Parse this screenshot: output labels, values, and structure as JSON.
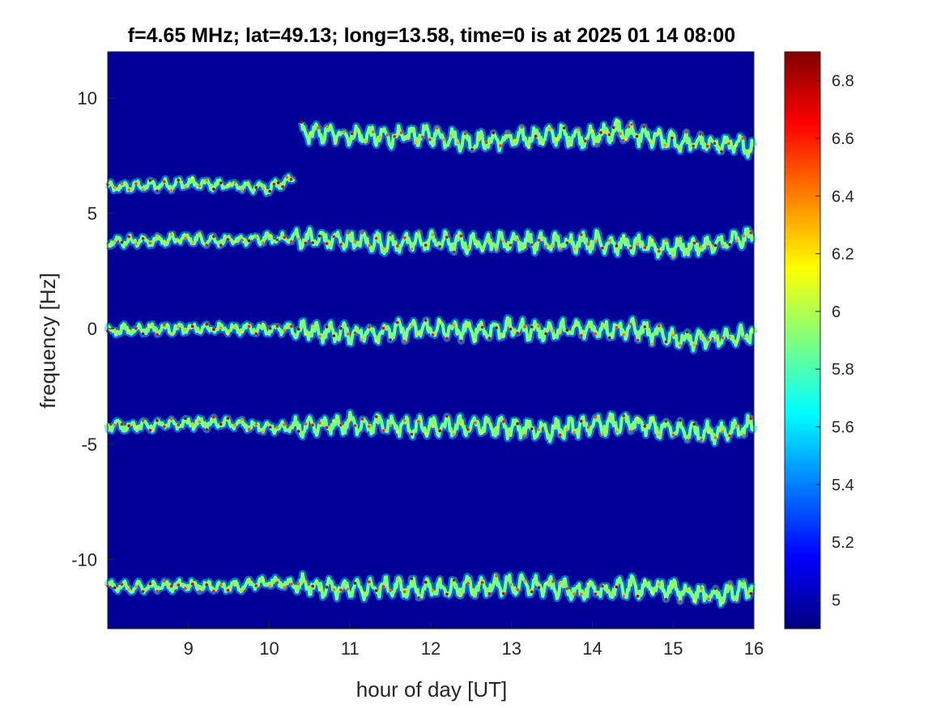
{
  "chart_data": {
    "type": "heatmap",
    "title": "f=4.65 MHz;  lat=49.13; long=13.58, time=0 is at 2025 01 14 08:00",
    "xlabel": "hour of day [UT]",
    "ylabel": "frequency [Hz]",
    "xlim": [
      8,
      16
    ],
    "ylim": [
      -13,
      12
    ],
    "xticks": [
      9,
      10,
      11,
      12,
      13,
      14,
      15,
      16
    ],
    "yticks": [
      -10,
      -5,
      0,
      5,
      10
    ],
    "colormap": "jet",
    "colorbar": {
      "range": [
        4.9,
        6.9
      ],
      "ticks": [
        5,
        5.2,
        5.4,
        5.6,
        5.8,
        6,
        6.2,
        6.4,
        6.6,
        6.8
      ],
      "placement": "right"
    },
    "background_value": 4.95,
    "traces": [
      {
        "segments": [
          {
            "x": [
              8.0,
              8.5,
              9.0,
              9.5,
              10.0,
              10.3
            ],
            "y": [
              6.1,
              6.2,
              6.3,
              6.2,
              6.1,
              6.5
            ]
          },
          {
            "x": [
              10.4,
              11.0,
              11.5,
              12.0,
              12.5,
              13.0,
              13.5,
              14.0,
              14.3,
              14.5,
              15.0,
              15.5,
              16.0
            ],
            "y": [
              8.5,
              8.4,
              8.3,
              8.4,
              8.1,
              8.2,
              8.4,
              8.3,
              8.6,
              8.4,
              8.1,
              8.0,
              7.9
            ]
          }
        ]
      },
      {
        "segments": [
          {
            "x": [
              8.0,
              8.5,
              9.0,
              9.5,
              10.0,
              10.5,
              11.0,
              11.5,
              12.0,
              12.5,
              13.0,
              13.5,
              14.0,
              14.5,
              15.0,
              15.5,
              16.0
            ],
            "y": [
              3.8,
              3.8,
              3.9,
              3.8,
              3.9,
              3.9,
              3.8,
              3.7,
              3.8,
              3.7,
              3.8,
              3.7,
              3.8,
              3.6,
              3.5,
              3.6,
              4.0
            ]
          }
        ]
      },
      {
        "segments": [
          {
            "x": [
              8.0,
              8.5,
              9.0,
              9.5,
              10.0,
              10.5,
              11.0,
              11.5,
              12.0,
              12.5,
              13.0,
              13.5,
              14.0,
              14.5,
              15.0,
              15.5,
              16.0
            ],
            "y": [
              -0.1,
              0.0,
              0.0,
              0.0,
              0.0,
              -0.1,
              -0.2,
              -0.1,
              0.0,
              -0.1,
              0.0,
              -0.1,
              0.0,
              0.0,
              -0.4,
              -0.5,
              -0.2
            ]
          }
        ]
      },
      {
        "segments": [
          {
            "x": [
              8.0,
              8.5,
              9.0,
              9.5,
              10.0,
              10.5,
              11.0,
              11.5,
              12.0,
              12.5,
              13.0,
              13.5,
              14.0,
              14.5,
              15.0,
              15.5,
              16.0
            ],
            "y": [
              -4.2,
              -4.2,
              -4.1,
              -4.1,
              -4.3,
              -4.3,
              -4.1,
              -4.2,
              -4.3,
              -4.2,
              -4.3,
              -4.4,
              -4.2,
              -4.1,
              -4.4,
              -4.5,
              -4.2
            ]
          }
        ]
      },
      {
        "segments": [
          {
            "x": [
              8.0,
              8.5,
              9.0,
              9.5,
              10.0,
              10.5,
              11.0,
              11.5,
              12.0,
              12.5,
              13.0,
              13.5,
              14.0,
              14.5,
              15.0,
              15.5,
              16.0
            ],
            "y": [
              -11.2,
              -11.2,
              -11.1,
              -11.2,
              -11.0,
              -11.1,
              -11.3,
              -11.2,
              -11.3,
              -11.2,
              -11.1,
              -11.2,
              -11.4,
              -11.2,
              -11.3,
              -11.6,
              -11.2
            ]
          }
        ]
      }
    ]
  }
}
